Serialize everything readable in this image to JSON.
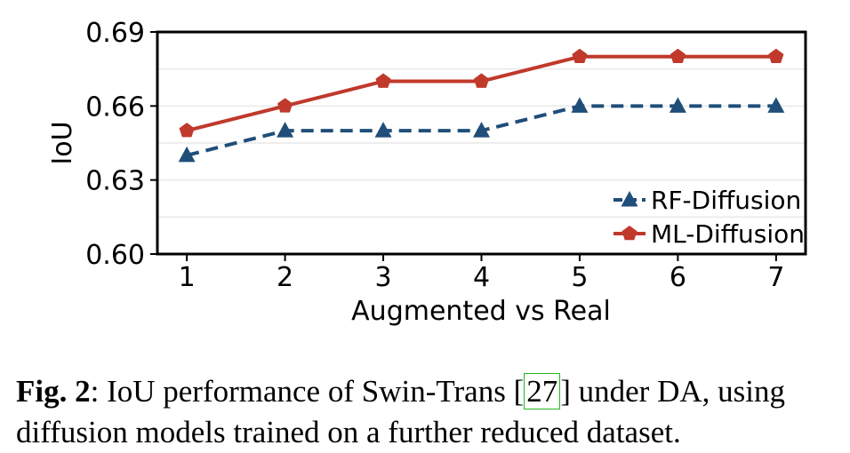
{
  "chart_data": {
    "type": "line",
    "xlabel": "Augmented vs Real",
    "ylabel": "IoU",
    "x": [
      1,
      2,
      3,
      4,
      5,
      6,
      7
    ],
    "x_ticks": [
      "1",
      "2",
      "3",
      "4",
      "5",
      "6",
      "7"
    ],
    "y_ticks": [
      "0.60",
      "0.63",
      "0.66",
      "0.69"
    ],
    "ylim": [
      0.6,
      0.69
    ],
    "xlim": [
      0.7,
      7.3
    ],
    "grid": "horizontal",
    "legend_position": "lower-right",
    "series": [
      {
        "name": "RF-Diffusion",
        "values": [
          0.64,
          0.65,
          0.65,
          0.65,
          0.66,
          0.66,
          0.66
        ],
        "color": "#1f4e79",
        "line_style": "dashed",
        "marker": "triangle"
      },
      {
        "name": "ML-Diffusion",
        "values": [
          0.65,
          0.66,
          0.67,
          0.67,
          0.68,
          0.68,
          0.68
        ],
        "color": "#c0392b",
        "line_style": "solid",
        "marker": "pentagon"
      }
    ]
  },
  "caption": {
    "label": "Fig. 2",
    "text_before": ": IoU performance of Swin-Trans [",
    "citation": "27",
    "text_after": "] under DA, using diffusion models trained on a further reduced dataset."
  }
}
